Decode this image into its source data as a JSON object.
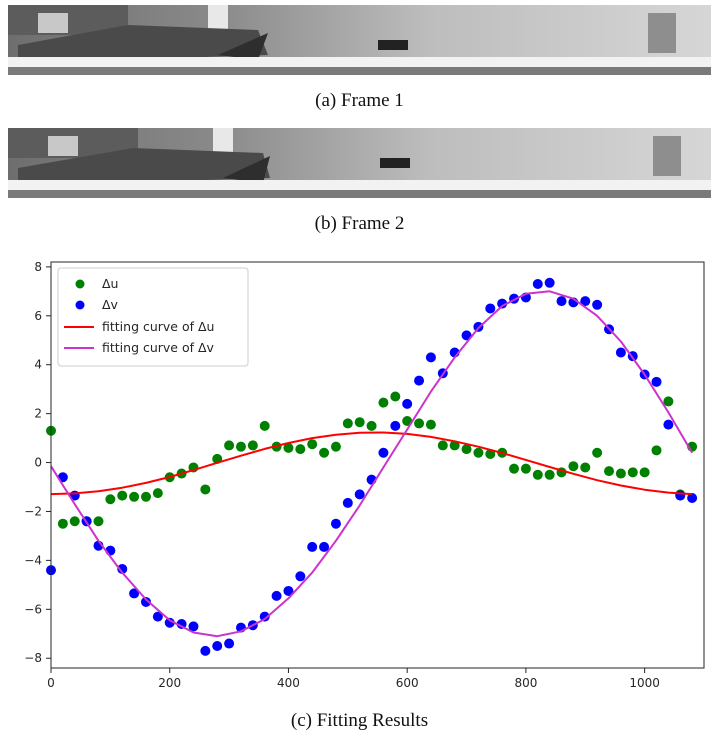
{
  "captions": {
    "frame1": "(a)  Frame 1",
    "frame2": "(b)  Frame 2",
    "chart": "(c)  Fitting Results"
  },
  "colors": {
    "du_points": "#008000",
    "dv_points": "#0000ff",
    "du_fit": "#ff0000",
    "dv_fit": "#cc33cc"
  },
  "chart_data": {
    "type": "scatter",
    "title": "",
    "xlabel": "",
    "ylabel": "",
    "xlim": [
      0,
      1100
    ],
    "ylim": [
      -8.4,
      8.2
    ],
    "xticks": [
      0,
      200,
      400,
      600,
      800,
      1000
    ],
    "yticks": [
      -8,
      -6,
      -4,
      -2,
      0,
      2,
      4,
      6,
      8
    ],
    "grid": false,
    "legend_position": "top-left",
    "legend": [
      "Δu",
      "Δv",
      "fitting curve of Δu",
      "fitting curve of Δv"
    ],
    "series": [
      {
        "name": "Δu",
        "kind": "points",
        "x": [
          0,
          20,
          40,
          60,
          80,
          100,
          120,
          140,
          160,
          180,
          200,
          220,
          240,
          260,
          280,
          300,
          320,
          340,
          360,
          380,
          400,
          420,
          440,
          460,
          480,
          500,
          520,
          540,
          560,
          580,
          600,
          620,
          640,
          660,
          680,
          700,
          720,
          740,
          760,
          780,
          800,
          820,
          840,
          860,
          880,
          900,
          920,
          940,
          960,
          980,
          1000,
          1020,
          1040,
          1060,
          1080
        ],
        "y": [
          1.3,
          -2.5,
          -2.4,
          -2.4,
          -2.4,
          -1.5,
          -1.35,
          -1.4,
          -1.4,
          -1.25,
          -0.6,
          -0.45,
          -0.2,
          -1.1,
          0.15,
          0.7,
          0.65,
          0.7,
          1.5,
          0.65,
          0.6,
          0.55,
          0.75,
          0.4,
          0.65,
          1.6,
          1.65,
          1.5,
          2.45,
          2.7,
          1.7,
          1.6,
          1.55,
          0.7,
          0.7,
          0.55,
          0.4,
          0.35,
          0.4,
          -0.25,
          -0.25,
          -0.5,
          -0.5,
          -0.4,
          -0.15,
          -0.2,
          0.4,
          -0.35,
          -0.45,
          -0.4,
          -0.4,
          0.5,
          2.5,
          -1.3,
          0.65
        ]
      },
      {
        "name": "Δv",
        "kind": "points",
        "x": [
          0,
          20,
          40,
          60,
          80,
          100,
          120,
          140,
          160,
          180,
          200,
          220,
          240,
          260,
          280,
          300,
          320,
          340,
          360,
          380,
          400,
          420,
          440,
          460,
          480,
          500,
          520,
          540,
          560,
          580,
          600,
          620,
          640,
          660,
          680,
          700,
          720,
          740,
          760,
          780,
          800,
          820,
          840,
          860,
          880,
          900,
          920,
          940,
          960,
          980,
          1000,
          1020,
          1040,
          1060,
          1080
        ],
        "y": [
          -4.4,
          -0.6,
          -1.35,
          -2.4,
          -3.4,
          -3.6,
          -4.35,
          -5.35,
          -5.7,
          -6.3,
          -6.55,
          -6.6,
          -6.7,
          -7.7,
          -7.5,
          -7.4,
          -6.75,
          -6.65,
          -6.3,
          -5.45,
          -5.25,
          -4.65,
          -3.45,
          -3.45,
          -2.5,
          -1.65,
          -1.3,
          -0.7,
          0.4,
          1.5,
          2.4,
          3.35,
          4.3,
          3.65,
          4.5,
          5.2,
          5.55,
          6.3,
          6.5,
          6.7,
          6.75,
          7.3,
          7.35,
          6.6,
          6.55,
          6.6,
          6.45,
          5.45,
          4.5,
          4.35,
          3.6,
          3.3,
          1.55,
          -1.35,
          -1.45
        ]
      },
      {
        "name": "fitting curve of Δu",
        "kind": "line",
        "x": [
          0,
          40,
          80,
          120,
          160,
          200,
          240,
          280,
          320,
          360,
          400,
          440,
          480,
          520,
          560,
          600,
          640,
          680,
          720,
          760,
          800,
          840,
          880,
          920,
          960,
          1000,
          1040,
          1080
        ],
        "y": [
          -1.29,
          -1.26,
          -1.17,
          -1.03,
          -0.83,
          -0.59,
          -0.31,
          -0.01,
          0.28,
          0.56,
          0.8,
          1.0,
          1.14,
          1.22,
          1.23,
          1.17,
          1.05,
          0.87,
          0.65,
          0.39,
          0.11,
          -0.18,
          -0.46,
          -0.72,
          -0.94,
          -1.11,
          -1.23,
          -1.29
        ]
      },
      {
        "name": "fitting curve of Δv",
        "kind": "line",
        "x": [
          0,
          40,
          80,
          120,
          160,
          200,
          240,
          280,
          320,
          360,
          400,
          440,
          480,
          520,
          560,
          600,
          640,
          680,
          720,
          760,
          800,
          840,
          880,
          920,
          960,
          1000,
          1040,
          1080
        ],
        "y": [
          -0.15,
          -1.7,
          -3.2,
          -4.5,
          -5.6,
          -6.45,
          -6.95,
          -7.1,
          -6.9,
          -6.4,
          -5.55,
          -4.5,
          -3.2,
          -1.75,
          -0.2,
          1.35,
          2.9,
          4.3,
          5.5,
          6.4,
          6.9,
          7.0,
          6.7,
          6.0,
          4.95,
          3.6,
          2.05,
          0.4
        ]
      }
    ]
  }
}
